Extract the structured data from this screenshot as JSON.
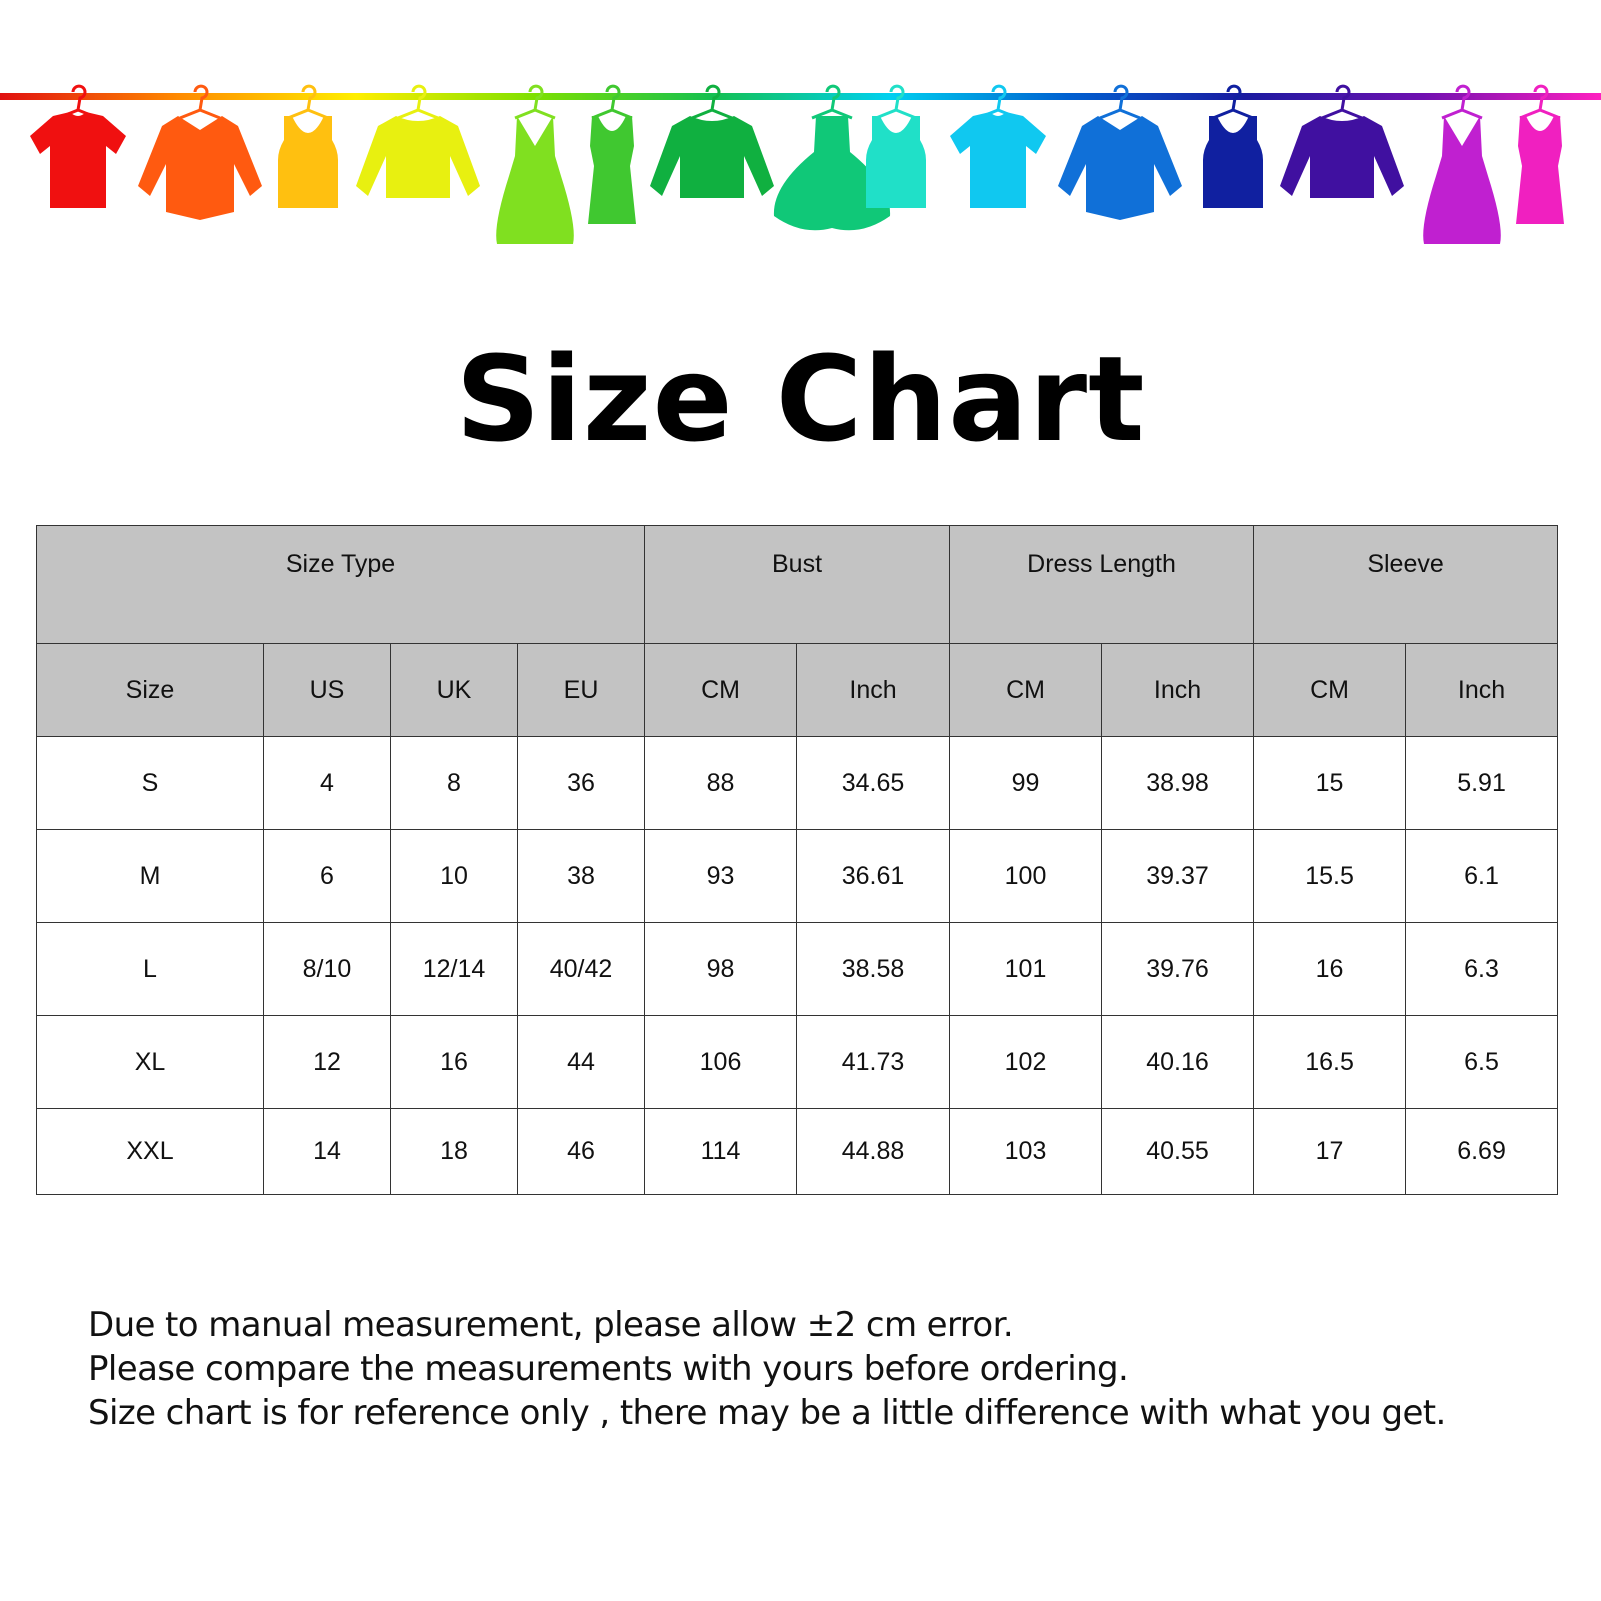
{
  "banner": {
    "rod_gradient": [
      "#e01010",
      "#ff8a00",
      "#ffee00",
      "#7ee000",
      "#14c050",
      "#00d0f0",
      "#0060d0",
      "#1a1aa0",
      "#7010b0",
      "#ff20c0"
    ],
    "items": [
      {
        "icon": "tshirt-icon",
        "color": "#f01010"
      },
      {
        "icon": "shirt-icon",
        "color": "#ff5a10"
      },
      {
        "icon": "tank-top-icon",
        "color": "#ffc010"
      },
      {
        "icon": "sweater-icon",
        "color": "#e8f010"
      },
      {
        "icon": "dress-icon",
        "color": "#80e020"
      },
      {
        "icon": "tank-dress-icon",
        "color": "#40c830"
      },
      {
        "icon": "sweater-icon",
        "color": "#10b040"
      },
      {
        "icon": "ball-gown-icon",
        "color": "#10c878"
      },
      {
        "icon": "tank-top-icon",
        "color": "#20e0c8"
      },
      {
        "icon": "tshirt-icon",
        "color": "#10c8f0"
      },
      {
        "icon": "shirt-icon",
        "color": "#1070d8"
      },
      {
        "icon": "tank-top-icon",
        "color": "#1020a0"
      },
      {
        "icon": "sweater-icon",
        "color": "#4010a0"
      },
      {
        "icon": "dress-icon",
        "color": "#c020d0"
      },
      {
        "icon": "tank-dress-icon",
        "color": "#f020c0"
      }
    ]
  },
  "title": "Size Chart",
  "table": {
    "groups": [
      "Size Type",
      "Bust",
      "Dress Length",
      "Sleeve"
    ],
    "columns": [
      "Size",
      "US",
      "UK",
      "EU",
      "CM",
      "Inch",
      "CM",
      "Inch",
      "CM",
      "Inch"
    ],
    "rows": [
      [
        "S",
        "4",
        "8",
        "36",
        "88",
        "34.65",
        "99",
        "38.98",
        "15",
        "5.91"
      ],
      [
        "M",
        "6",
        "10",
        "38",
        "93",
        "36.61",
        "100",
        "39.37",
        "15.5",
        "6.1"
      ],
      [
        "L",
        "8/10",
        "12/14",
        "40/42",
        "98",
        "38.58",
        "101",
        "39.76",
        "16",
        "6.3"
      ],
      [
        "XL",
        "12",
        "16",
        "44",
        "106",
        "41.73",
        "102",
        "40.16",
        "16.5",
        "6.5"
      ],
      [
        "XXL",
        "14",
        "18",
        "46",
        "114",
        "44.88",
        "103",
        "40.55",
        "17",
        "6.69"
      ]
    ]
  },
  "notes": [
    "Due to manual measurement, please allow ±2 cm error.",
    "Please compare the measurements with yours before ordering.",
    "Size chart is for reference only , there may be a little difference with what you get."
  ]
}
